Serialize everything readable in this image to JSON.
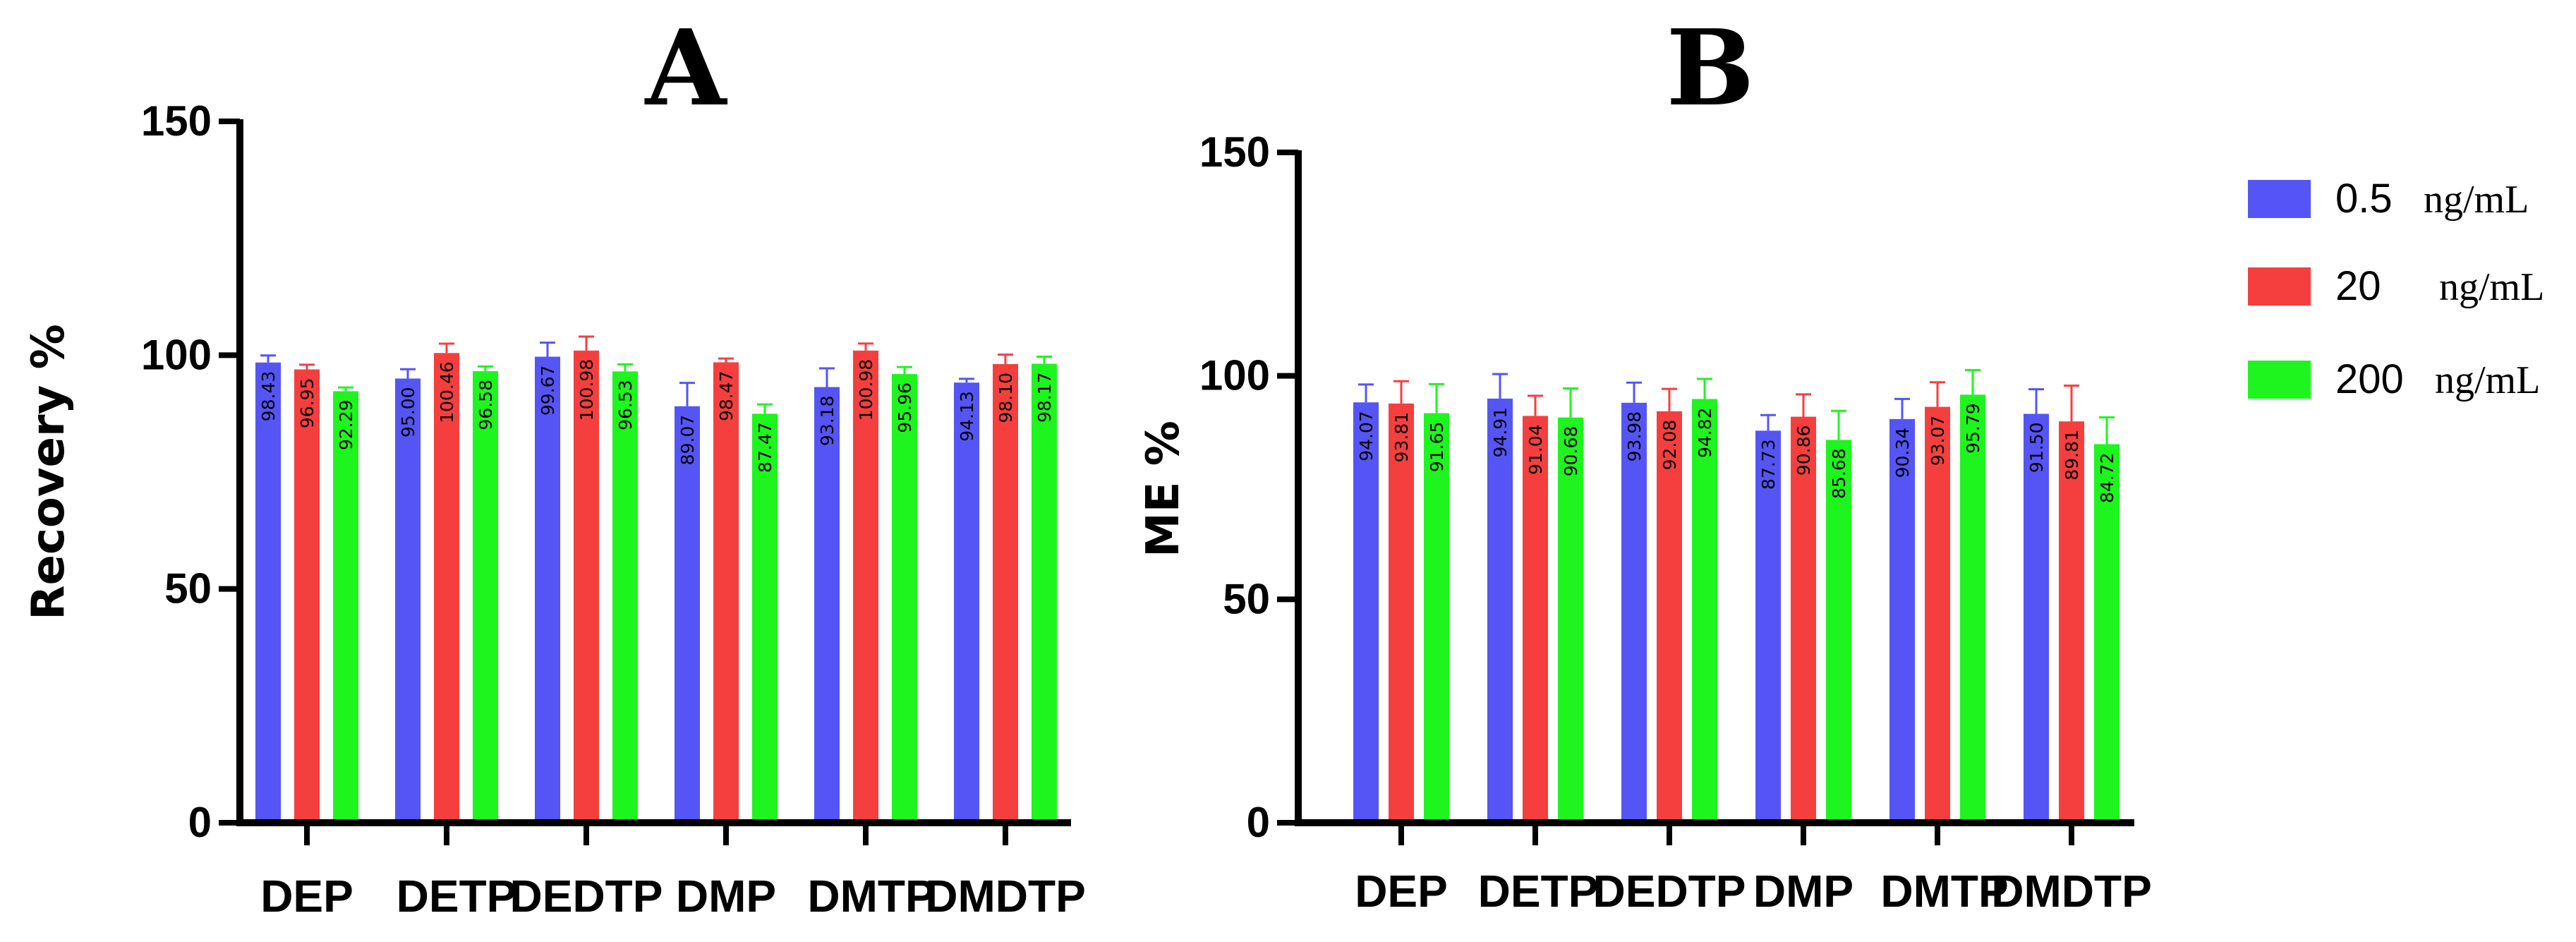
{
  "colors": {
    "s0": "#5555f5",
    "s1": "#f53f3f",
    "s2": "#1ef51e"
  },
  "legend": [
    {
      "value": "0.5",
      "unit": "ng/mL",
      "color_key": "s0"
    },
    {
      "value": "20",
      "unit": "ng/mL",
      "color_key": "s1"
    },
    {
      "value": "200",
      "unit": "ng/mL",
      "color_key": "s2"
    }
  ],
  "chart_data": [
    {
      "type": "bar",
      "panel": "A",
      "title": "A",
      "xlabel": "",
      "ylabel": "Recovery %",
      "ylim": [
        0,
        150
      ],
      "yticks": [
        "0",
        "50",
        "100",
        "150"
      ],
      "categories": [
        "DEP",
        "DETP",
        "DEDTP",
        "DMP",
        "DMTP",
        "DMDTP"
      ],
      "series": [
        {
          "name": "0.5 ng/mL",
          "values": [
            98.43,
            95.0,
            99.67,
            89.07,
            93.18,
            94.13
          ],
          "labels": [
            "98.43",
            "95.00",
            "99.67",
            "89.07",
            "93.18",
            "94.13"
          ],
          "errors": [
            1.5,
            2.0,
            3.0,
            5.0,
            4.0,
            0.8
          ]
        },
        {
          "name": "20 ng/mL",
          "values": [
            96.95,
            100.46,
            100.98,
            98.47,
            100.98,
            98.1
          ],
          "labels": [
            "96.95",
            "100.46",
            "100.98",
            "98.47",
            "100.98",
            "98.10"
          ],
          "errors": [
            1.0,
            2.0,
            3.0,
            0.8,
            1.5,
            2.0
          ]
        },
        {
          "name": "200 ng/mL",
          "values": [
            92.29,
            96.58,
            96.53,
            87.47,
            95.96,
            98.17
          ],
          "labels": [
            "92.29",
            "96.58",
            "96.53",
            "87.47",
            "95.96",
            "98.17"
          ],
          "errors": [
            0.8,
            1.0,
            1.5,
            2.0,
            1.5,
            1.5
          ]
        }
      ]
    },
    {
      "type": "bar",
      "panel": "B",
      "title": "B",
      "xlabel": "",
      "ylabel": "ME %",
      "ylim": [
        0,
        150
      ],
      "yticks": [
        "0",
        "50",
        "100",
        "150"
      ],
      "categories": [
        "DEP",
        "DETP",
        "DEDTP",
        "DMP",
        "DMTP",
        "DMDTP"
      ],
      "series": [
        {
          "name": "0.5 ng/mL",
          "values": [
            94.07,
            94.91,
            93.98,
            87.73,
            90.34,
            91.5
          ],
          "labels": [
            "94.07",
            "94.91",
            "93.98",
            "87.73",
            "90.34",
            "91.50"
          ],
          "errors": [
            4.0,
            5.5,
            4.5,
            3.5,
            4.5,
            5.5
          ]
        },
        {
          "name": "20 ng/mL",
          "values": [
            93.81,
            91.04,
            92.08,
            90.86,
            93.07,
            89.81
          ],
          "labels": [
            "93.81",
            "91.04",
            "92.08",
            "90.86",
            "93.07",
            "89.81"
          ],
          "errors": [
            5.0,
            4.5,
            5.0,
            5.0,
            5.5,
            8.0
          ]
        },
        {
          "name": "200 ng/mL",
          "values": [
            91.65,
            90.68,
            94.82,
            85.68,
            95.79,
            84.72
          ],
          "labels": [
            "91.65",
            "90.68",
            "94.82",
            "85.68",
            "95.79",
            "84.72"
          ],
          "errors": [
            6.5,
            6.5,
            4.5,
            6.5,
            5.5,
            6.0
          ]
        }
      ]
    }
  ]
}
